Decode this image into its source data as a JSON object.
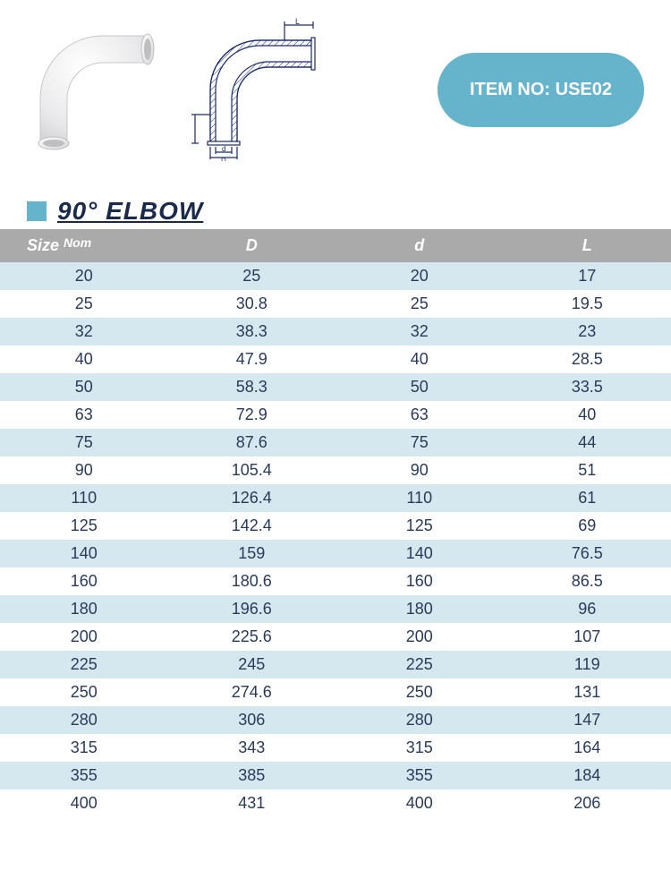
{
  "badge_label": "ITEM NO: USE02",
  "title": "90° ELBOW",
  "diagram_labels": {
    "L": "L",
    "d": "d",
    "D": "D"
  },
  "colors": {
    "badge_bg": "#66b3cc",
    "badge_text": "#ffffff",
    "header_bg": "#a9aaa9",
    "header_text": "#ffffff",
    "row_even": "#d5e8ef",
    "row_odd": "#ffffff",
    "body_text": "#2a3a5a",
    "title_text": "#1a2a4a",
    "square": "#66b3cc",
    "diagram_stroke": "#1a2a6a",
    "diagram_hatch": "#1a2a6a"
  },
  "table": {
    "columns": [
      "Size",
      "D",
      "d",
      "L"
    ],
    "size_nom_suffix": "Nom",
    "col_widths_pct": [
      25,
      25,
      25,
      25
    ],
    "rows": [
      [
        "20",
        "25",
        "20",
        "17"
      ],
      [
        "25",
        "30.8",
        "25",
        "19.5"
      ],
      [
        "32",
        "38.3",
        "32",
        "23"
      ],
      [
        "40",
        "47.9",
        "40",
        "28.5"
      ],
      [
        "50",
        "58.3",
        "50",
        "33.5"
      ],
      [
        "63",
        "72.9",
        "63",
        "40"
      ],
      [
        "75",
        "87.6",
        "75",
        "44"
      ],
      [
        "90",
        "105.4",
        "90",
        "51"
      ],
      [
        "110",
        "126.4",
        "110",
        "61"
      ],
      [
        "125",
        "142.4",
        "125",
        "69"
      ],
      [
        "140",
        "159",
        "140",
        "76.5"
      ],
      [
        "160",
        "180.6",
        "160",
        "86.5"
      ],
      [
        "180",
        "196.6",
        "180",
        "96"
      ],
      [
        "200",
        "225.6",
        "200",
        "107"
      ],
      [
        "225",
        "245",
        "225",
        "119"
      ],
      [
        "250",
        "274.6",
        "250",
        "131"
      ],
      [
        "280",
        "306",
        "280",
        "147"
      ],
      [
        "315",
        "343",
        "315",
        "164"
      ],
      [
        "355",
        "385",
        "355",
        "184"
      ],
      [
        "400",
        "431",
        "400",
        "206"
      ]
    ]
  }
}
